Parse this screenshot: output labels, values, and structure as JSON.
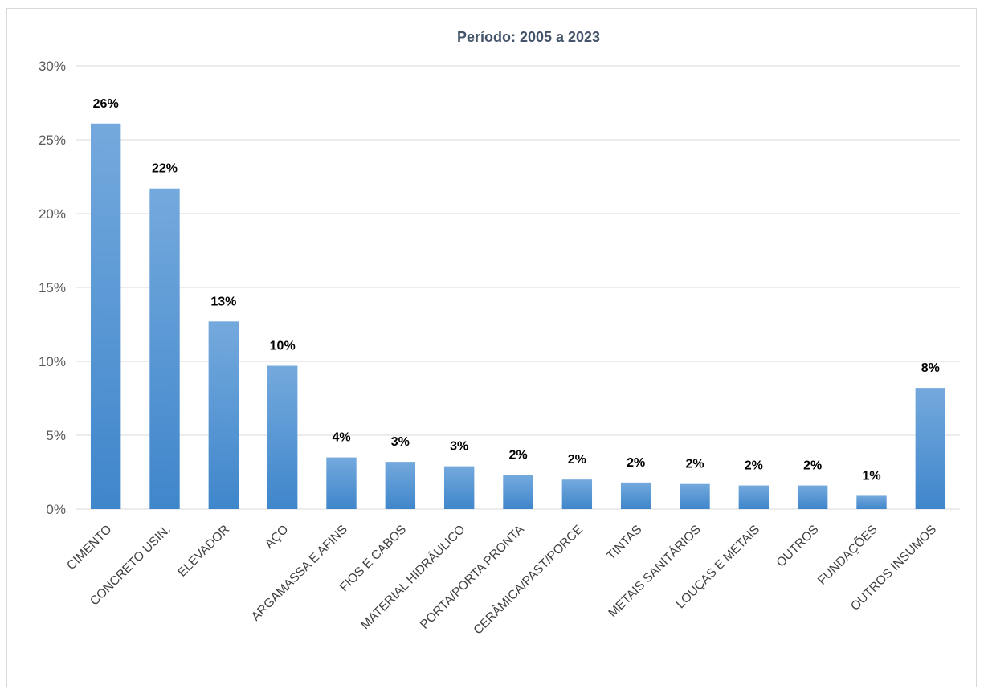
{
  "chart_data": {
    "type": "bar",
    "title": "Período: 2005 a 2023",
    "xlabel": "",
    "ylabel": "",
    "ylim": [
      0,
      30
    ],
    "yticks": [
      "0%",
      "5%",
      "10%",
      "15%",
      "20%",
      "25%",
      "30%"
    ],
    "grid": true,
    "legend": "none",
    "categories": [
      "CIMENTO",
      "CONCRETO USIN.",
      "ELEVADOR",
      "AÇO",
      "ARGAMASSA E AFINS",
      "FIOS E CABOS",
      "MATERIAL HIDRÁULICO",
      "PORTA/PORTA PRONTA",
      "CERÂMICA/PAST/PORCE",
      "TINTAS",
      "METAIS SANITÁRIOS",
      "LOUÇAS E METAIS",
      "OUTROS",
      "FUNDAÇÕES",
      "OUTROS INSUMOS"
    ],
    "values": [
      26.1,
      21.7,
      12.7,
      9.7,
      3.5,
      3.2,
      2.9,
      2.3,
      2.0,
      1.8,
      1.7,
      1.6,
      1.6,
      0.9,
      8.2
    ],
    "data_labels": [
      "26%",
      "22%",
      "13%",
      "10%",
      "4%",
      "3%",
      "3%",
      "2%",
      "2%",
      "2%",
      "2%",
      "2%",
      "2%",
      "1%",
      "8%"
    ],
    "colors": {
      "bar_top": "#74a9dd",
      "bar_bottom": "#3f86cb",
      "grid": "#d9d9d9",
      "title": "#44546a"
    }
  }
}
